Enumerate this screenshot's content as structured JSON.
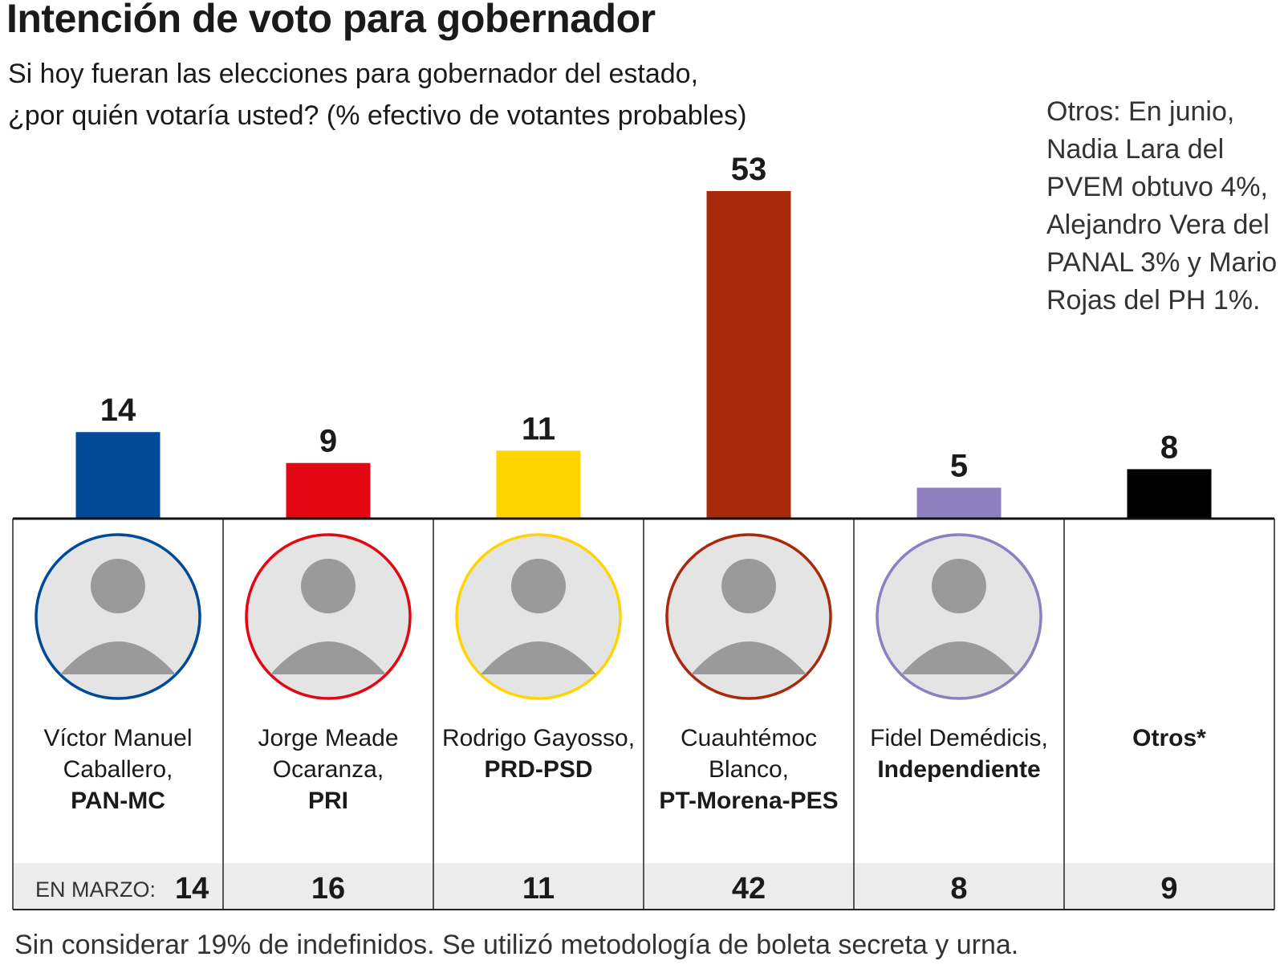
{
  "chart_data": {
    "type": "bar",
    "title": "Intención de voto para gobernador",
    "subtitle_lines": [
      "Si hoy fueran las elecciones para gobernador del estado,",
      "¿por quién votaría usted? (% efectivo de votantes probables)"
    ],
    "note": "Otros: En junio, Nadia Lara del PVEM obtuvo 4%, Alejandro Vera del PANAL 3% y Mario Rojas del PH 1%.",
    "categories": [
      {
        "name_lines": [
          "Víctor Manuel",
          "Caballero,"
        ],
        "party": "PAN-MC",
        "color": "#004a98"
      },
      {
        "name_lines": [
          "Jorge Meade",
          "Ocaranza,"
        ],
        "party": "PRI",
        "color": "#e30613"
      },
      {
        "name_lines": [
          "Rodrigo Gayosso,"
        ],
        "party": "PRD-PSD",
        "color": "#ffd400"
      },
      {
        "name_lines": [
          "Cuauhtémoc",
          "Blanco,"
        ],
        "party": "PT-Morena-PES",
        "color": "#a82a0c"
      },
      {
        "name_lines": [
          "Fidel Demédicis,"
        ],
        "party": "Independiente",
        "color": "#8e80c0"
      },
      {
        "name_lines": [],
        "party": "Otros*",
        "color": "#000000"
      }
    ],
    "series": [
      {
        "values": [
          14,
          9,
          11,
          53,
          5,
          8
        ]
      },
      {
        "label": "EN MARZO:",
        "values": [
          14,
          16,
          11,
          42,
          8,
          9
        ]
      }
    ],
    "ylim": [
      0,
      53
    ]
  },
  "footer": "Sin considerar 19% de indefinidos. Se utilizó metodología de boleta secreta y urna."
}
